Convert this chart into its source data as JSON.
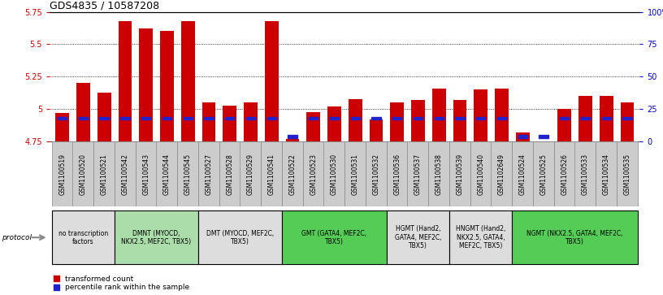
{
  "title": "GDS4835 / 10587208",
  "samples": [
    "GSM1100519",
    "GSM1100520",
    "GSM1100521",
    "GSM1100542",
    "GSM1100543",
    "GSM1100544",
    "GSM1100545",
    "GSM1100527",
    "GSM1100528",
    "GSM1100529",
    "GSM1100541",
    "GSM1100522",
    "GSM1100523",
    "GSM1100530",
    "GSM1100531",
    "GSM1100532",
    "GSM1100536",
    "GSM1100537",
    "GSM1100538",
    "GSM1100539",
    "GSM1100540",
    "GSM1102649",
    "GSM1100524",
    "GSM1100525",
    "GSM1100526",
    "GSM1100533",
    "GSM1100534",
    "GSM1100535"
  ],
  "transformed_count": [
    4.97,
    5.2,
    5.13,
    5.68,
    5.62,
    5.6,
    5.68,
    5.05,
    5.03,
    5.05,
    5.68,
    4.77,
    4.98,
    5.02,
    5.08,
    4.92,
    5.05,
    5.07,
    5.16,
    5.07,
    5.15,
    5.16,
    4.82,
    4.75,
    5.0,
    5.1,
    5.1,
    5.05
  ],
  "percentile_rank": [
    18,
    18,
    18,
    18,
    18,
    18,
    18,
    18,
    18,
    18,
    18,
    4,
    18,
    18,
    18,
    18,
    18,
    18,
    18,
    18,
    18,
    18,
    4,
    4,
    18,
    18,
    18,
    18
  ],
  "ymin": 4.75,
  "ymax": 5.75,
  "yticks": [
    4.75,
    5.0,
    5.25,
    5.5,
    5.75
  ],
  "ytick_labels": [
    "4.75",
    "5",
    "5.25",
    "5.5",
    "5.75"
  ],
  "right_yticks": [
    0,
    25,
    50,
    75,
    100
  ],
  "right_ytick_labels": [
    "0",
    "25",
    "50",
    "75",
    "100%"
  ],
  "bar_color": "#cc0000",
  "percentile_color": "#2222cc",
  "protocol_groups": [
    {
      "label": "no transcription\nfactors",
      "start": 0,
      "end": 3,
      "color": "#dddddd"
    },
    {
      "label": "DMNT (MYOCD,\nNKX2.5, MEF2C, TBX5)",
      "start": 3,
      "end": 7,
      "color": "#aaddaa"
    },
    {
      "label": "DMT (MYOCD, MEF2C,\nTBX5)",
      "start": 7,
      "end": 11,
      "color": "#dddddd"
    },
    {
      "label": "GMT (GATA4, MEF2C,\nTBX5)",
      "start": 11,
      "end": 16,
      "color": "#55cc55"
    },
    {
      "label": "HGMT (Hand2,\nGATA4, MEF2C,\nTBX5)",
      "start": 16,
      "end": 19,
      "color": "#dddddd"
    },
    {
      "label": "HNGMT (Hand2,\nNKX2.5, GATA4,\nMEF2C, TBX5)",
      "start": 19,
      "end": 22,
      "color": "#dddddd"
    },
    {
      "label": "NGMT (NKX2.5, GATA4, MEF2C,\nTBX5)",
      "start": 22,
      "end": 28,
      "color": "#55cc55"
    }
  ],
  "bar_width": 0.65,
  "xlabel_fontsize": 5.5,
  "ylabel_color_left": "#cc0000",
  "ylabel_color_right": "#0000cc",
  "title_fontsize": 9,
  "tick_fontsize": 7,
  "protocol_fontsize": 5.5,
  "xtick_bg": "#cccccc"
}
